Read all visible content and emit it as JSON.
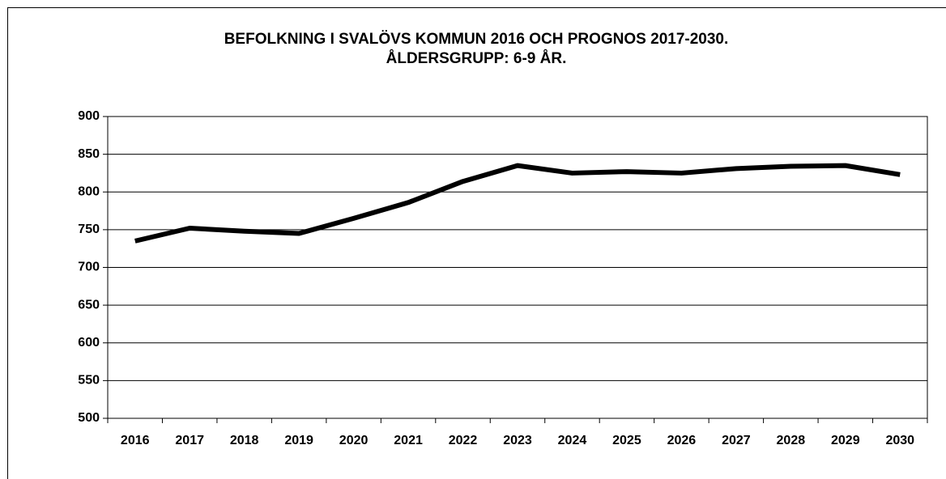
{
  "chart_data": {
    "type": "line",
    "title": [
      "BEFOLKNING I SVALÖVS KOMMUN 2016 OCH PROGNOS 2017-2030.",
      "ÅLDERSGRUPP: 6-9 ÅR."
    ],
    "categories": [
      "2016",
      "2017",
      "2018",
      "2019",
      "2020",
      "2021",
      "2022",
      "2023",
      "2024",
      "2025",
      "2026",
      "2027",
      "2028",
      "2029",
      "2030"
    ],
    "series": [
      {
        "color": "#000000",
        "values": [
          735,
          752,
          748,
          745,
          765,
          786,
          814,
          835,
          825,
          827,
          825,
          831,
          834,
          835,
          823
        ]
      }
    ],
    "ylim": [
      500,
      900
    ],
    "yticks": [
      500,
      550,
      600,
      650,
      700,
      750,
      800,
      850,
      900
    ],
    "grid": true
  }
}
